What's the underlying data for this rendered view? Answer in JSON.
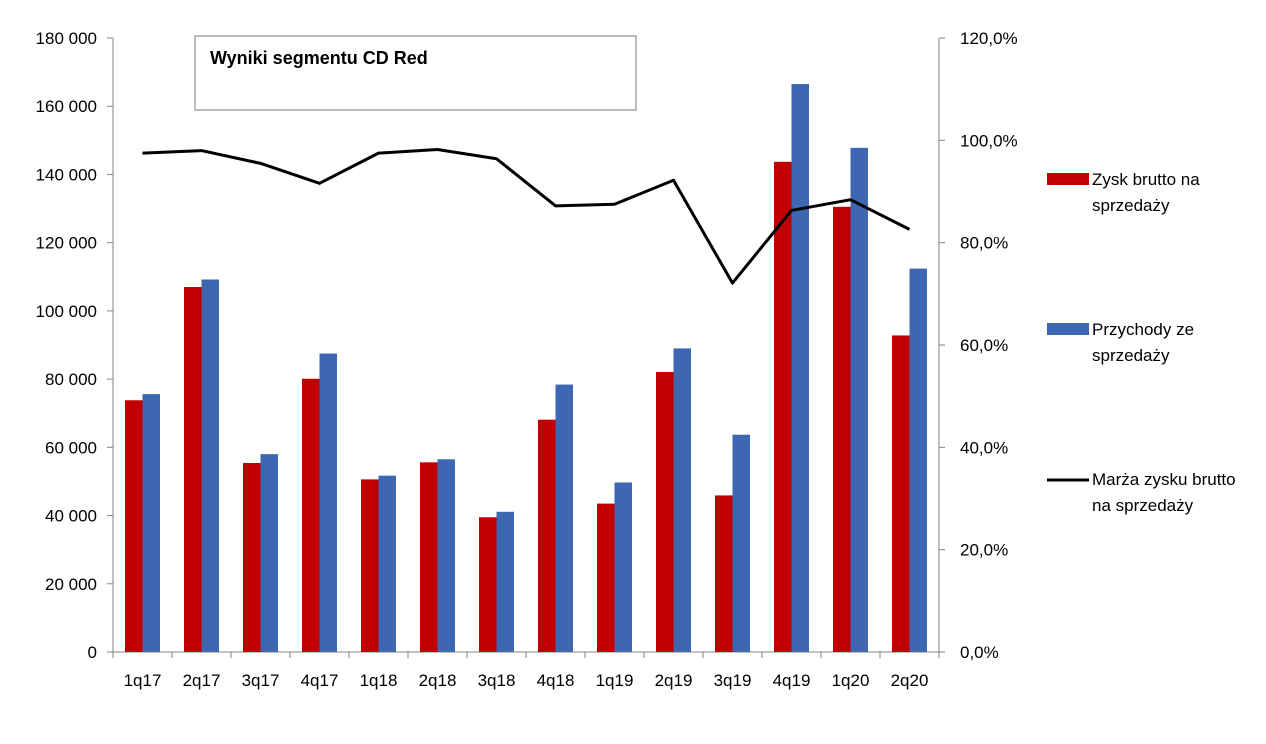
{
  "chart_data": {
    "type": "bar",
    "title": "Wyniki segmentu CD Red",
    "categories": [
      "1q17",
      "2q17",
      "3q17",
      "4q17",
      "1q18",
      "2q18",
      "3q18",
      "4q18",
      "1q19",
      "2q19",
      "3q19",
      "4q19",
      "1q20",
      "2q20"
    ],
    "series": [
      {
        "name": "Zysk brutto na sprzedaży",
        "type": "bar",
        "axis": "left",
        "color": "#c00000",
        "values": [
          73800,
          107000,
          55400,
          80100,
          50600,
          55600,
          39500,
          68100,
          43500,
          82100,
          45900,
          143700,
          130500,
          92800
        ]
      },
      {
        "name": "Przychody ze sprzedaży",
        "type": "bar",
        "axis": "left",
        "color": "#3e67b1",
        "values": [
          75600,
          109200,
          58000,
          87500,
          51700,
          56500,
          41100,
          78400,
          49700,
          89000,
          63700,
          166500,
          147800,
          112400
        ]
      },
      {
        "name": "Marża zysku brutto na sprzedaży",
        "type": "line",
        "axis": "right",
        "color": "#000000",
        "values": [
          97.5,
          98.0,
          95.5,
          91.6,
          97.5,
          98.2,
          96.4,
          87.2,
          87.5,
          92.2,
          72.1,
          86.3,
          88.4,
          82.6
        ]
      }
    ],
    "y_left": {
      "range": [
        0,
        180000
      ],
      "ticks": [
        "0",
        "20 000",
        "40 000",
        "60 000",
        "80 000",
        "100 000",
        "120 000",
        "140 000",
        "160 000",
        "180 000"
      ]
    },
    "y_right": {
      "range": [
        0,
        120
      ],
      "ticks": [
        "0,0%",
        "20,0%",
        "40,0%",
        "60,0%",
        "80,0%",
        "100,0%",
        "120,0%"
      ]
    },
    "legend": {
      "placement": "right",
      "items": [
        {
          "lines": [
            "Zysk brutto na",
            "sprzedaży"
          ],
          "color": "#c00000",
          "kind": "bar"
        },
        {
          "lines": [
            "Przychody ze",
            "sprzedaży"
          ],
          "color": "#3e67b1",
          "kind": "bar"
        },
        {
          "lines": [
            "Marża zysku brutto",
            "na sprzedaży"
          ],
          "color": "#000000",
          "kind": "line"
        }
      ]
    },
    "grid": false
  }
}
